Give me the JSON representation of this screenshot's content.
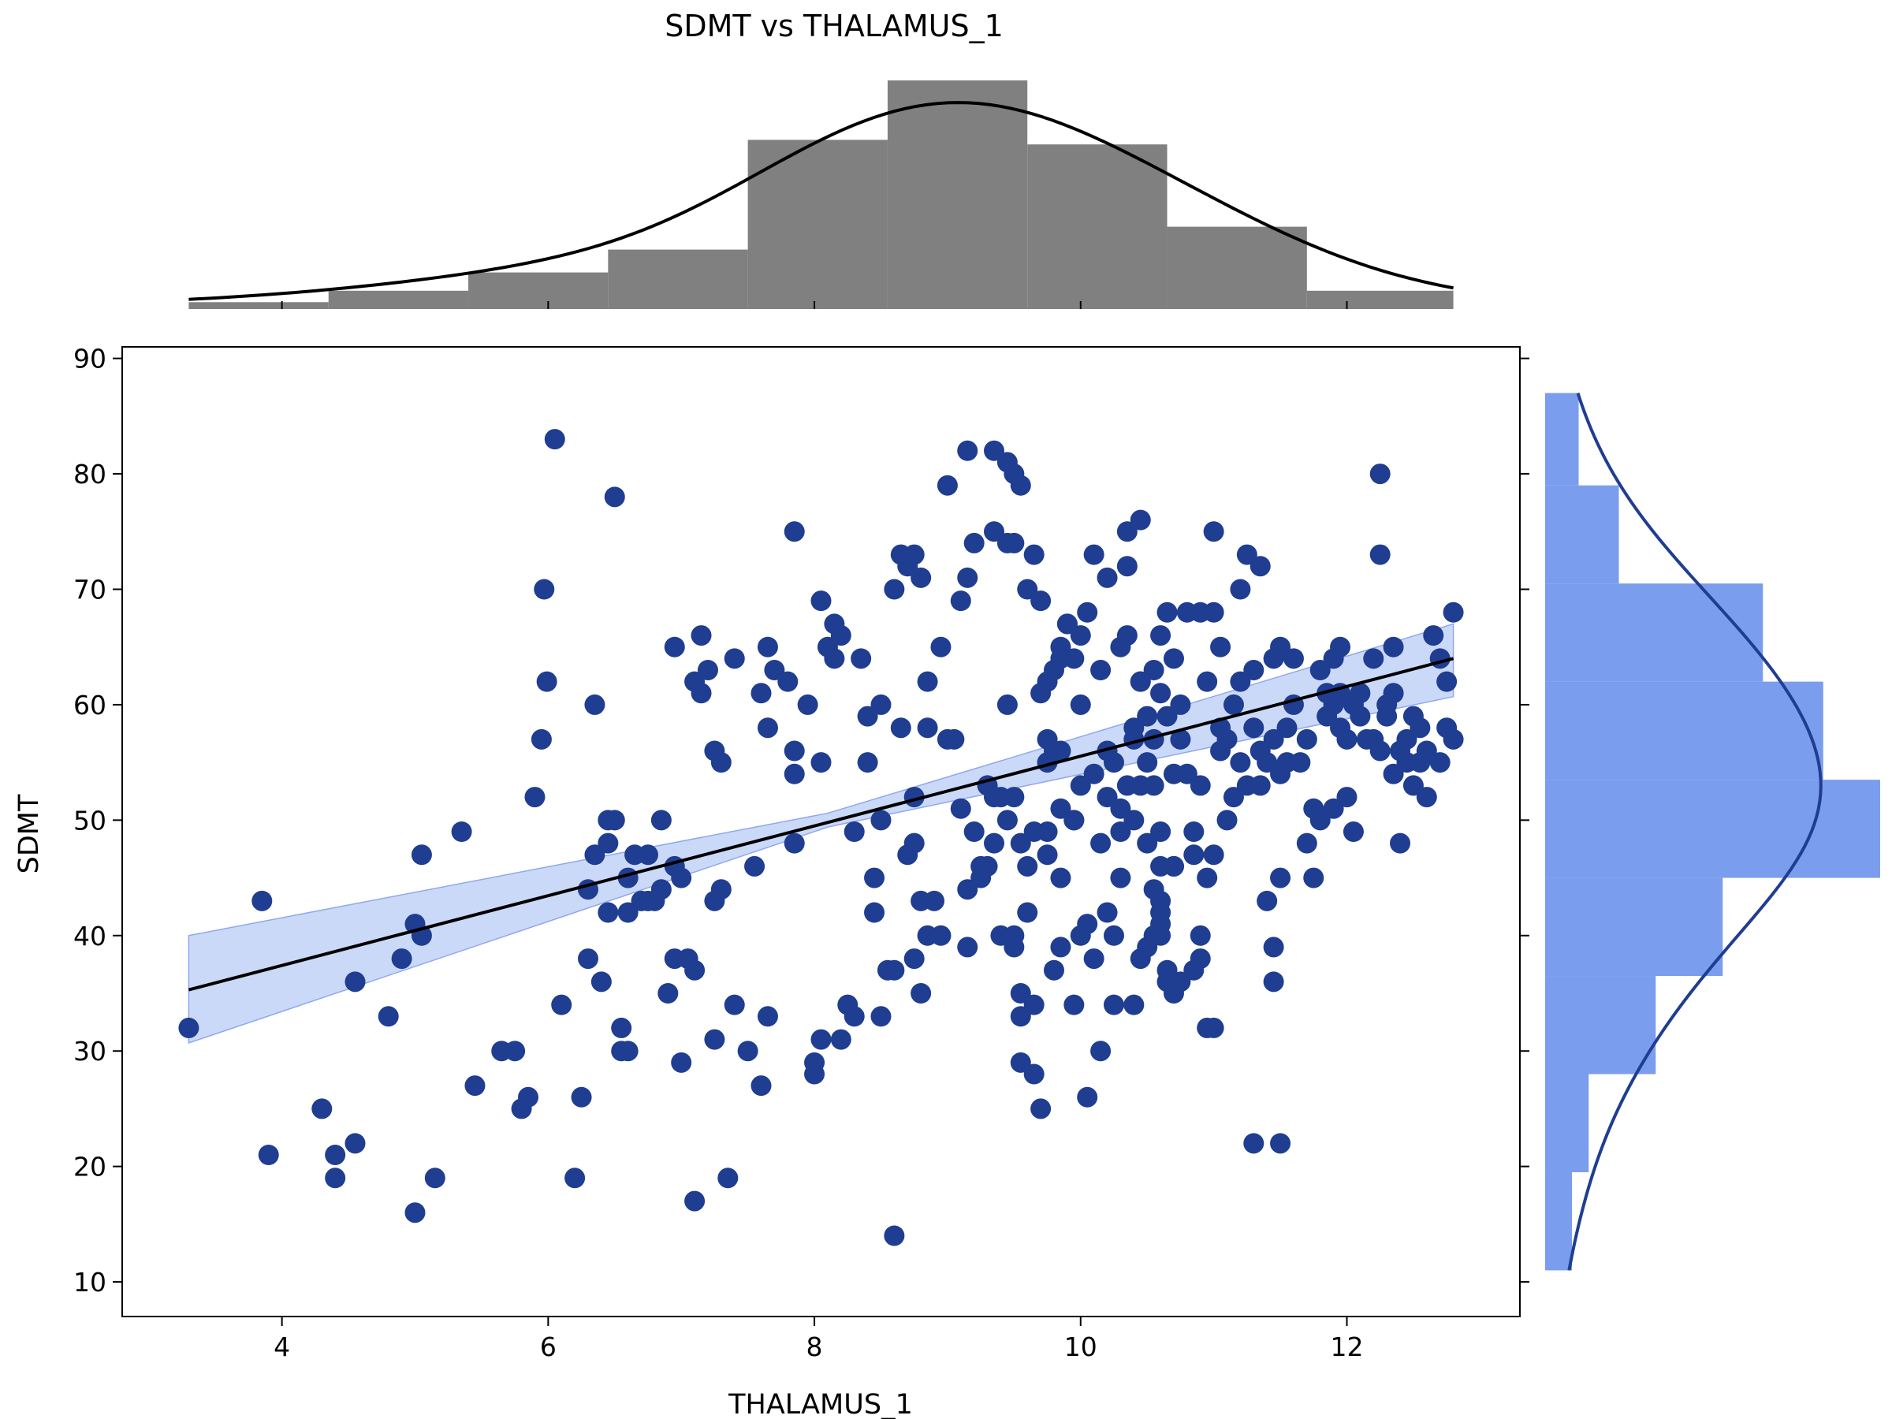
{
  "chart_data": {
    "type": "scatter",
    "title": "SDMT vs THALAMUS_1",
    "xlabel": "THALAMUS_1",
    "ylabel": "SDMT",
    "xlim": [
      2.8,
      13.3
    ],
    "ylim": [
      7,
      91
    ],
    "xticks": [
      4,
      6,
      8,
      10,
      12
    ],
    "yticks": [
      10,
      20,
      30,
      40,
      50,
      60,
      70,
      80,
      90
    ],
    "grid": false,
    "colors": {
      "points": "#1f3d91",
      "regression_line": "#000000",
      "confidence_band": "#a8bff3",
      "top_histogram": "#808080",
      "right_histogram": "#7a9dee",
      "right_kde": "#1f3d91",
      "top_kde": "#000000"
    },
    "regression": {
      "x": [
        3.3,
        12.8
      ],
      "y": [
        35.3,
        64.0
      ]
    },
    "confidence_band": {
      "x": [
        3.3,
        8.1,
        12.8
      ],
      "lower": [
        30.7,
        49.4,
        60.7
      ],
      "upper": [
        40.0,
        50.6,
        67.0
      ]
    },
    "points": [
      [
        3.3,
        32
      ],
      [
        3.85,
        43
      ],
      [
        3.9,
        21
      ],
      [
        4.3,
        25
      ],
      [
        4.4,
        21
      ],
      [
        4.4,
        19
      ],
      [
        4.55,
        22
      ],
      [
        4.55,
        36
      ],
      [
        4.8,
        33
      ],
      [
        4.9,
        38
      ],
      [
        5.0,
        41
      ],
      [
        5.0,
        16
      ],
      [
        5.05,
        40
      ],
      [
        5.05,
        47
      ],
      [
        5.15,
        19
      ],
      [
        5.35,
        49
      ],
      [
        5.45,
        27
      ],
      [
        5.65,
        30
      ],
      [
        5.75,
        30
      ],
      [
        5.8,
        25
      ],
      [
        5.85,
        26
      ],
      [
        5.9,
        52
      ],
      [
        5.95,
        57
      ],
      [
        5.97,
        70
      ],
      [
        5.99,
        62
      ],
      [
        6.05,
        83
      ],
      [
        6.1,
        34
      ],
      [
        6.2,
        19
      ],
      [
        6.25,
        26
      ],
      [
        6.3,
        38
      ],
      [
        6.35,
        60
      ],
      [
        6.4,
        36
      ],
      [
        6.45,
        50
      ],
      [
        6.5,
        78
      ],
      [
        6.55,
        32
      ],
      [
        6.55,
        30
      ],
      [
        6.6,
        30
      ],
      [
        6.6,
        45
      ],
      [
        6.9,
        35
      ],
      [
        6.95,
        65
      ],
      [
        7.0,
        29
      ],
      [
        7.05,
        38
      ],
      [
        7.1,
        17
      ],
      [
        7.15,
        66
      ],
      [
        7.25,
        43
      ],
      [
        7.3,
        44
      ],
      [
        7.35,
        19
      ],
      [
        7.55,
        46
      ],
      [
        7.6,
        61
      ],
      [
        7.65,
        58
      ],
      [
        7.7,
        63
      ],
      [
        7.8,
        62
      ],
      [
        7.85,
        48
      ],
      [
        7.85,
        56
      ],
      [
        7.85,
        54
      ],
      [
        8.0,
        28
      ],
      [
        8.0,
        29
      ],
      [
        8.05,
        31
      ],
      [
        8.05,
        55
      ],
      [
        8.2,
        31
      ],
      [
        8.3,
        49
      ],
      [
        8.35,
        64
      ],
      [
        8.4,
        55
      ],
      [
        8.45,
        42
      ],
      [
        8.45,
        45
      ],
      [
        8.5,
        50
      ],
      [
        8.5,
        33
      ],
      [
        8.55,
        37
      ],
      [
        8.6,
        14
      ],
      [
        8.65,
        58
      ],
      [
        8.7,
        47
      ],
      [
        8.75,
        48
      ],
      [
        8.75,
        52
      ],
      [
        8.8,
        35
      ],
      [
        8.8,
        43
      ],
      [
        8.85,
        58
      ],
      [
        8.85,
        62
      ],
      [
        8.9,
        43
      ],
      [
        8.95,
        65
      ],
      [
        9.0,
        57
      ],
      [
        9.05,
        57
      ],
      [
        9.1,
        51
      ],
      [
        9.2,
        49
      ],
      [
        9.25,
        45
      ],
      [
        9.3,
        46
      ],
      [
        9.3,
        53
      ],
      [
        9.35,
        75
      ],
      [
        9.35,
        48
      ],
      [
        9.4,
        52
      ],
      [
        9.45,
        60
      ],
      [
        9.5,
        52
      ],
      [
        9.5,
        40
      ],
      [
        9.55,
        33
      ],
      [
        9.55,
        35
      ],
      [
        9.6,
        46
      ],
      [
        9.6,
        42
      ],
      [
        9.65,
        28
      ],
      [
        9.7,
        25
      ],
      [
        9.7,
        69
      ],
      [
        9.75,
        47
      ],
      [
        9.75,
        55
      ],
      [
        9.8,
        56
      ],
      [
        9.85,
        65
      ],
      [
        9.85,
        56
      ],
      [
        9.85,
        45
      ],
      [
        9.9,
        67
      ],
      [
        9.95,
        50
      ],
      [
        10.0,
        60
      ],
      [
        10.05,
        41
      ],
      [
        10.1,
        38
      ],
      [
        10.15,
        48
      ],
      [
        10.2,
        42
      ],
      [
        10.25,
        40
      ],
      [
        10.3,
        45
      ],
      [
        10.35,
        66
      ],
      [
        10.4,
        58
      ],
      [
        10.45,
        53
      ],
      [
        10.5,
        55
      ],
      [
        10.55,
        44
      ],
      [
        10.55,
        53
      ],
      [
        10.6,
        41
      ],
      [
        10.6,
        43
      ],
      [
        10.65,
        36
      ],
      [
        10.7,
        46
      ],
      [
        10.75,
        60
      ],
      [
        10.8,
        54
      ],
      [
        10.85,
        47
      ],
      [
        10.9,
        38
      ],
      [
        10.95,
        32
      ],
      [
        11.0,
        47
      ],
      [
        11.0,
        32
      ],
      [
        11.05,
        56
      ],
      [
        11.1,
        50
      ],
      [
        11.15,
        52
      ],
      [
        11.2,
        62
      ],
      [
        11.25,
        73
      ],
      [
        11.3,
        22
      ],
      [
        11.35,
        72
      ],
      [
        11.4,
        43
      ],
      [
        11.45,
        36
      ],
      [
        11.5,
        45
      ],
      [
        11.55,
        55
      ],
      [
        11.6,
        64
      ],
      [
        11.65,
        55
      ],
      [
        11.7,
        48
      ],
      [
        11.75,
        51
      ],
      [
        11.8,
        50
      ],
      [
        11.85,
        59
      ],
      [
        11.9,
        60
      ],
      [
        11.95,
        65
      ],
      [
        12.0,
        52
      ],
      [
        12.05,
        49
      ],
      [
        12.1,
        61
      ],
      [
        12.15,
        57
      ],
      [
        12.25,
        73
      ],
      [
        12.3,
        60
      ],
      [
        12.35,
        65
      ],
      [
        12.4,
        48
      ],
      [
        12.45,
        55
      ],
      [
        12.5,
        53
      ],
      [
        12.55,
        58
      ],
      [
        12.6,
        52
      ],
      [
        12.65,
        66
      ],
      [
        12.7,
        64
      ],
      [
        12.75,
        62
      ],
      [
        12.8,
        68
      ],
      [
        12.2,
        64
      ],
      [
        12.25,
        80
      ],
      [
        11.75,
        45
      ],
      [
        11.9,
        51
      ],
      [
        11.95,
        61
      ],
      [
        11.45,
        39
      ],
      [
        11.5,
        22
      ],
      [
        11.5,
        54
      ],
      [
        11.45,
        57
      ],
      [
        11.5,
        65
      ],
      [
        11.45,
        64
      ],
      [
        11.25,
        53
      ],
      [
        11.35,
        53
      ],
      [
        11.3,
        63
      ],
      [
        11.2,
        70
      ],
      [
        11.05,
        65
      ],
      [
        11.0,
        68
      ],
      [
        10.95,
        62
      ],
      [
        11.0,
        75
      ],
      [
        10.9,
        68
      ],
      [
        10.8,
        68
      ],
      [
        10.75,
        57
      ],
      [
        10.7,
        54
      ],
      [
        10.7,
        64
      ],
      [
        10.65,
        68
      ],
      [
        10.65,
        59
      ],
      [
        10.6,
        61
      ],
      [
        10.6,
        66
      ],
      [
        10.55,
        63
      ],
      [
        10.6,
        42
      ],
      [
        10.6,
        46
      ],
      [
        10.55,
        57
      ],
      [
        10.5,
        59
      ],
      [
        10.45,
        62
      ],
      [
        10.4,
        57
      ],
      [
        10.35,
        53
      ],
      [
        10.3,
        49
      ],
      [
        10.3,
        65
      ],
      [
        10.35,
        75
      ],
      [
        10.35,
        72
      ],
      [
        10.45,
        76
      ],
      [
        10.45,
        62
      ],
      [
        10.25,
        55
      ],
      [
        10.2,
        71
      ],
      [
        10.2,
        56
      ],
      [
        10.15,
        63
      ],
      [
        10.1,
        73
      ],
      [
        10.05,
        68
      ],
      [
        10.0,
        66
      ],
      [
        9.95,
        64
      ],
      [
        9.9,
        67
      ],
      [
        9.85,
        64
      ],
      [
        9.8,
        63
      ],
      [
        9.75,
        57
      ],
      [
        9.75,
        62
      ],
      [
        9.7,
        61
      ],
      [
        9.65,
        73
      ],
      [
        9.6,
        70
      ],
      [
        9.55,
        79
      ],
      [
        9.5,
        80
      ],
      [
        9.45,
        81
      ],
      [
        9.35,
        82
      ],
      [
        9.15,
        82
      ],
      [
        9.0,
        79
      ],
      [
        9.5,
        74
      ],
      [
        9.45,
        74
      ],
      [
        9.15,
        71
      ],
      [
        9.1,
        69
      ],
      [
        9.2,
        74
      ],
      [
        8.75,
        73
      ],
      [
        8.65,
        73
      ],
      [
        8.7,
        72
      ],
      [
        8.8,
        71
      ],
      [
        8.6,
        70
      ],
      [
        8.5,
        60
      ],
      [
        8.4,
        59
      ],
      [
        8.15,
        67
      ],
      [
        8.05,
        69
      ],
      [
        8.15,
        64
      ],
      [
        8.1,
        65
      ],
      [
        8.2,
        66
      ],
      [
        7.95,
        60
      ],
      [
        7.85,
        75
      ],
      [
        7.65,
        65
      ],
      [
        7.4,
        64
      ],
      [
        7.1,
        62
      ],
      [
        7.2,
        63
      ],
      [
        7.15,
        61
      ],
      [
        7.25,
        56
      ],
      [
        7.3,
        55
      ],
      [
        7.0,
        45
      ],
      [
        6.95,
        46
      ],
      [
        6.85,
        44
      ],
      [
        6.8,
        43
      ],
      [
        6.75,
        47
      ],
      [
        6.65,
        47
      ],
      [
        6.85,
        50
      ],
      [
        6.5,
        50
      ],
      [
        6.45,
        48
      ],
      [
        6.35,
        47
      ],
      [
        6.3,
        44
      ],
      [
        6.45,
        42
      ],
      [
        6.6,
        42
      ],
      [
        6.7,
        43
      ],
      [
        6.75,
        43
      ],
      [
        6.95,
        38
      ],
      [
        7.1,
        37
      ],
      [
        7.25,
        31
      ],
      [
        7.4,
        34
      ],
      [
        7.5,
        30
      ],
      [
        7.6,
        27
      ],
      [
        7.65,
        33
      ],
      [
        8.25,
        34
      ],
      [
        8.3,
        33
      ],
      [
        8.6,
        37
      ],
      [
        8.75,
        38
      ],
      [
        8.85,
        40
      ],
      [
        8.95,
        40
      ],
      [
        9.15,
        39
      ],
      [
        9.4,
        40
      ],
      [
        9.5,
        39
      ],
      [
        9.65,
        34
      ],
      [
        9.55,
        29
      ],
      [
        9.95,
        34
      ],
      [
        9.8,
        37
      ],
      [
        9.85,
        39
      ],
      [
        10.0,
        40
      ],
      [
        10.05,
        26
      ],
      [
        10.15,
        30
      ],
      [
        10.25,
        34
      ],
      [
        10.4,
        34
      ],
      [
        10.45,
        38
      ],
      [
        10.5,
        39
      ],
      [
        10.55,
        40
      ],
      [
        10.6,
        40
      ],
      [
        10.65,
        37
      ],
      [
        10.7,
        35
      ],
      [
        10.75,
        36
      ],
      [
        10.85,
        37
      ],
      [
        10.9,
        40
      ],
      [
        10.95,
        45
      ],
      [
        9.15,
        44
      ],
      [
        9.25,
        46
      ],
      [
        9.35,
        52
      ],
      [
        9.45,
        50
      ],
      [
        9.55,
        48
      ],
      [
        9.65,
        49
      ],
      [
        9.75,
        49
      ],
      [
        9.85,
        51
      ],
      [
        9.95,
        50
      ],
      [
        10.0,
        53
      ],
      [
        10.1,
        54
      ],
      [
        10.2,
        52
      ],
      [
        10.3,
        51
      ],
      [
        10.4,
        50
      ],
      [
        10.5,
        48
      ],
      [
        10.6,
        49
      ],
      [
        10.7,
        46
      ],
      [
        10.85,
        49
      ],
      [
        10.9,
        53
      ],
      [
        11.05,
        58
      ],
      [
        11.1,
        57
      ],
      [
        11.15,
        60
      ],
      [
        11.2,
        55
      ],
      [
        11.3,
        58
      ],
      [
        11.35,
        56
      ],
      [
        11.4,
        55
      ],
      [
        11.55,
        58
      ],
      [
        11.6,
        60
      ],
      [
        11.7,
        57
      ],
      [
        11.8,
        63
      ],
      [
        11.85,
        61
      ],
      [
        11.9,
        64
      ],
      [
        11.95,
        58
      ],
      [
        12.0,
        57
      ],
      [
        12.05,
        60
      ],
      [
        12.1,
        59
      ],
      [
        12.2,
        57
      ],
      [
        12.25,
        56
      ],
      [
        12.3,
        59
      ],
      [
        12.35,
        61
      ],
      [
        12.4,
        56
      ],
      [
        12.45,
        57
      ],
      [
        12.5,
        59
      ],
      [
        12.55,
        55
      ],
      [
        12.6,
        56
      ],
      [
        12.7,
        55
      ],
      [
        12.75,
        58
      ],
      [
        12.8,
        57
      ],
      [
        12.35,
        54
      ]
    ],
    "top_histogram": {
      "bin_edges": [
        3.3,
        4.35,
        5.4,
        6.45,
        7.5,
        8.55,
        9.6,
        10.65,
        11.7,
        12.8
      ],
      "relative_heights": [
        0.03,
        0.08,
        0.16,
        0.26,
        0.74,
        1.0,
        0.72,
        0.36,
        0.08
      ]
    },
    "right_histogram": {
      "bin_edges": [
        11,
        19.5,
        28,
        36.5,
        45,
        53.5,
        62,
        70.5,
        79,
        87
      ],
      "relative_heights": [
        0.08,
        0.13,
        0.33,
        0.53,
        1.0,
        0.83,
        0.65,
        0.22,
        0.1
      ]
    }
  }
}
